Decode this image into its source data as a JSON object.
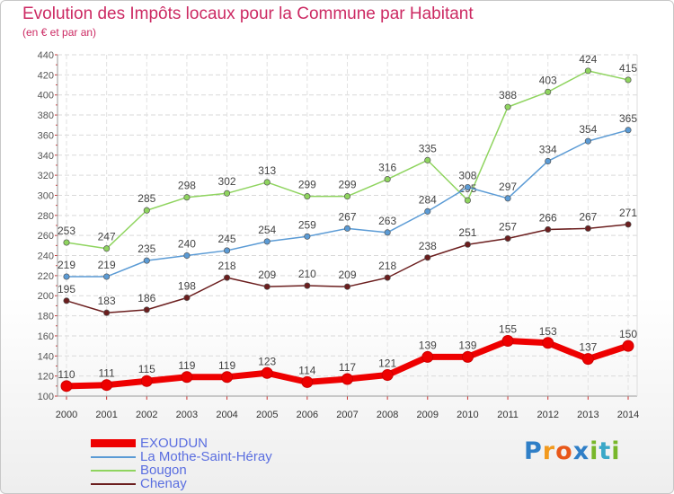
{
  "header": {
    "title": "Evolution des Impôts locaux pour la Commune par Habitant",
    "subtitle": "(en € et par an)"
  },
  "logo": {
    "text": "Proxiti",
    "letters": [
      {
        "ch": "P",
        "color": "#2f7fc7"
      },
      {
        "ch": "r",
        "color": "#f29a1e"
      },
      {
        "ch": "o",
        "color": "#e8581a"
      },
      {
        "ch": "x",
        "color": "#2f7fc7"
      },
      {
        "ch": "i",
        "color": "#78b72a"
      },
      {
        "ch": "t",
        "color": "#3aa8c8"
      },
      {
        "ch": "i",
        "color": "#78b72a"
      }
    ]
  },
  "chart_data": {
    "type": "line",
    "title": "Evolution des Impôts locaux pour la Commune par Habitant",
    "subtitle": "(en € et par an)",
    "x": [
      "2000",
      "2001",
      "2002",
      "2003",
      "2004",
      "2005",
      "2006",
      "2007",
      "2008",
      "2009",
      "2010",
      "2011",
      "2012",
      "2013",
      "2014"
    ],
    "ylim": [
      100,
      440
    ],
    "yticks": [
      100,
      120,
      140,
      160,
      180,
      200,
      220,
      240,
      260,
      280,
      300,
      320,
      340,
      360,
      380,
      400,
      420,
      440
    ],
    "grid": true,
    "legend_position": "bottom-left",
    "series": [
      {
        "name": "EXOUDUN",
        "color": "#ee0000",
        "values": [
          110,
          111,
          115,
          119,
          119,
          123,
          114,
          117,
          121,
          139,
          139,
          155,
          153,
          137,
          150
        ]
      },
      {
        "name": "La Mothe-Saint-Héray",
        "color": "#5b9bd5",
        "values": [
          219,
          219,
          235,
          240,
          245,
          254,
          259,
          267,
          263,
          284,
          308,
          297,
          334,
          354,
          365
        ]
      },
      {
        "name": "Bougon",
        "color": "#8fd45f",
        "values": [
          253,
          247,
          285,
          298,
          302,
          313,
          299,
          299,
          316,
          335,
          295,
          388,
          403,
          424,
          415
        ]
      },
      {
        "name": "Chenay",
        "color": "#6b1e1e",
        "values": [
          195,
          183,
          186,
          198,
          218,
          209,
          210,
          209,
          218,
          238,
          251,
          257,
          266,
          267,
          271
        ]
      }
    ]
  }
}
